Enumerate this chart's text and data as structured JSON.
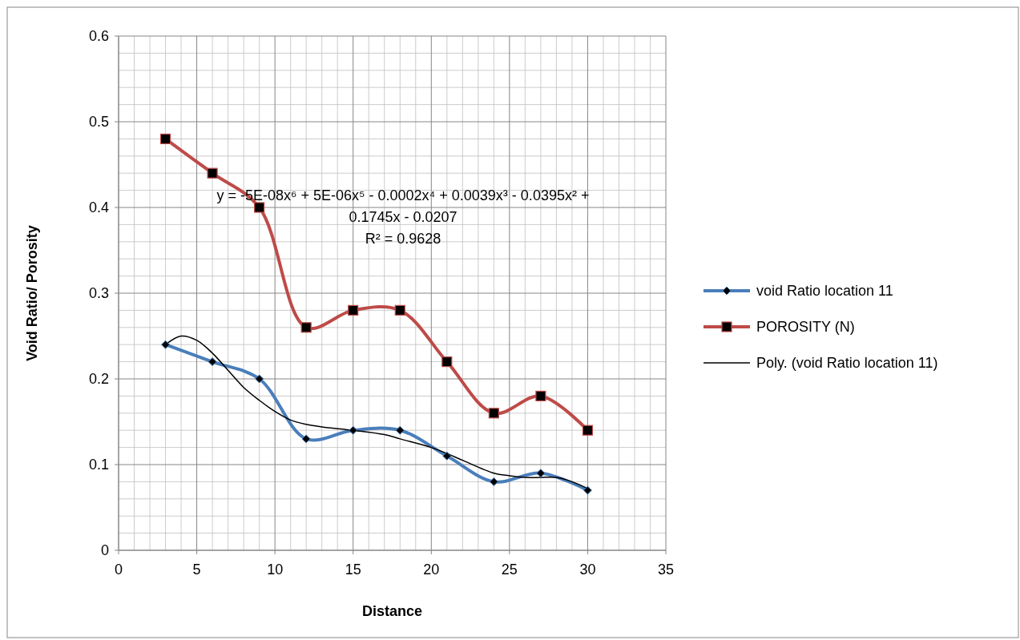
{
  "chart_data": {
    "type": "line",
    "xlabel": "Distance",
    "ylabel": "Void Ratio/ Porosity",
    "x": [
      3,
      6,
      9,
      12,
      15,
      18,
      21,
      24,
      27,
      30
    ],
    "series": [
      {
        "name": "void Ratio location 11",
        "color": "#4a7ebb",
        "marker": "diamond",
        "values": [
          0.24,
          0.22,
          0.2,
          0.13,
          0.14,
          0.14,
          0.11,
          0.08,
          0.09,
          0.07
        ]
      },
      {
        "name": "POROSITY (N)",
        "color": "#be4b48",
        "marker": "square",
        "values": [
          0.48,
          0.44,
          0.4,
          0.26,
          0.28,
          0.28,
          0.22,
          0.16,
          0.18,
          0.14
        ]
      },
      {
        "name": "Poly. (void Ratio location 11)",
        "color": "#000000",
        "marker": "none",
        "type": "line",
        "x": [
          3,
          4,
          5,
          6,
          7,
          8,
          9,
          10,
          11,
          12,
          13,
          15,
          17,
          18,
          20,
          21,
          22,
          24,
          25,
          26,
          27,
          28,
          29,
          30
        ],
        "values": [
          0.24,
          0.25,
          0.245,
          0.23,
          0.21,
          0.19,
          0.175,
          0.162,
          0.152,
          0.147,
          0.144,
          0.14,
          0.135,
          0.13,
          0.12,
          0.113,
          0.105,
          0.09,
          0.087,
          0.085,
          0.085,
          0.085,
          0.08,
          0.072
        ]
      }
    ],
    "xlim": [
      0,
      35
    ],
    "xticks": [
      0,
      5,
      10,
      15,
      20,
      25,
      30,
      35
    ],
    "ylim": [
      0,
      0.6
    ],
    "yticks": [
      0,
      0.1,
      0.2,
      0.3,
      0.4,
      0.5,
      0.6
    ],
    "grid": true,
    "legend": "right",
    "annotations": [
      "y = -5E-08x⁶ + 5E-06x⁵ - 0.0002x⁴ + 0.0039x³ - 0.0395x² +",
      "0.1745x - 0.0207",
      "R² = 0.9628"
    ]
  }
}
